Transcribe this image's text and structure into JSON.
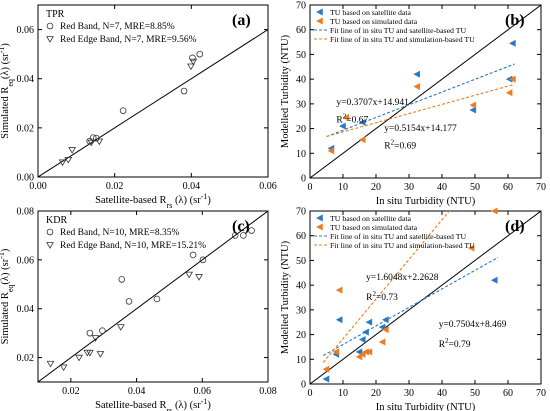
{
  "chart_data": [
    {
      "panel": "(a)",
      "type": "scatter",
      "region": "TPR",
      "xlabel": "Satellite-based R",
      "xlabel_sub": "rs",
      "xlabel_tail": "(λ)  (sr",
      "ylabel": "Simulated  R",
      "ylabel_sub": "eq",
      "ylabel_tail": "(λ) (sr",
      "unit_exp": "-1",
      "unit_close": ")",
      "xlim": [
        0,
        0.06
      ],
      "ylim": [
        0,
        0.07
      ],
      "xticks": [
        "0.00",
        "0.02",
        "0.04",
        "0.06"
      ],
      "xtick_values": [
        0,
        0.02,
        0.04,
        0.06
      ],
      "yticks": [
        "0.00",
        "0.02",
        "0.04",
        "0.06"
      ],
      "ytick_values": [
        0,
        0.02,
        0.04,
        0.06
      ],
      "one_to_one_line": true,
      "series": [
        {
          "name": "Red Band, N=7, MRE=8.85%",
          "marker": "circle",
          "x": [
            0.0135,
            0.0144,
            0.0152,
            0.0222,
            0.0381,
            0.0403,
            0.0422
          ],
          "y": [
            0.0146,
            0.016,
            0.0158,
            0.027,
            0.035,
            0.0485,
            0.05
          ]
        },
        {
          "name": "Red Edge Band, N=7, MRE=9.56%",
          "marker": "triangle",
          "x": [
            0.0064,
            0.0079,
            0.0089,
            0.0139,
            0.016,
            0.0399,
            0.0405
          ],
          "y": [
            0.006,
            0.007,
            0.011,
            0.014,
            0.0145,
            0.045,
            0.047
          ]
        }
      ]
    },
    {
      "panel": "(b)",
      "type": "scatter",
      "xlabel": "In situ Turbidity (NTU)",
      "ylabel": "Modelled Turbidity (NTU)",
      "xlim": [
        0,
        70
      ],
      "ylim": [
        0,
        70
      ],
      "xticks": [
        "0",
        "10",
        "20",
        "30",
        "40",
        "50",
        "60",
        "70"
      ],
      "xtick_values": [
        0,
        10,
        20,
        30,
        40,
        50,
        60,
        70
      ],
      "yticks": [
        "0",
        "10",
        "20",
        "30",
        "40",
        "50",
        "60",
        "70"
      ],
      "ytick_values": [
        0,
        10,
        20,
        30,
        40,
        50,
        60,
        70
      ],
      "one_to_one_line": true,
      "series": [
        {
          "name": "TU based on satellite data",
          "marker": "triangle-left",
          "color": "#2878c8",
          "x": [
            6.5,
            10.0,
            16.0,
            32.5,
            49.5,
            60.5,
            61.5
          ],
          "y": [
            12.0,
            21.0,
            22.5,
            42.0,
            27.5,
            40.0,
            54.5
          ]
        },
        {
          "name": "TU based on simulated data",
          "marker": "triangle-left",
          "color": "#f07a20",
          "x": [
            6.5,
            11.0,
            16.0,
            32.5,
            49.5,
            60.5,
            61.5
          ],
          "y": [
            11.0,
            24.5,
            15.5,
            37.0,
            29.5,
            34.5,
            40.0
          ]
        }
      ],
      "fit_lines": [
        {
          "name": "Fit line of in situ TU and satellite-based TU",
          "color": "#2878c8",
          "slope": 0.5154,
          "intercept": 14.177,
          "x_range": [
            5,
            62
          ]
        },
        {
          "name": "Fit line of in situ TU and simulation-based TU",
          "color": "#f07a20",
          "slope": 0.3707,
          "intercept": 14.941,
          "x_range": [
            5,
            62
          ]
        }
      ],
      "annotations": [
        {
          "eq": "y=0.3707x+14.941",
          "r2_pre": "R",
          "r2_exp": "2",
          "r2_post": "=0.67",
          "x": 8,
          "y_eq": 29.5,
          "y_r2": 22.5
        },
        {
          "eq": "y=0.5154x+14.177",
          "r2_pre": "R",
          "r2_exp": "2",
          "r2_post": "=0.69",
          "x": 22.5,
          "y_eq": 19,
          "y_r2": 12
        }
      ]
    },
    {
      "panel": "(c)",
      "type": "scatter",
      "region": "KDR",
      "xlabel": "Satellite-based R",
      "xlabel_sub": "rs",
      "xlabel_tail": "(λ)  (sr",
      "ylabel": "Simulated  R",
      "ylabel_sub": "eq",
      "ylabel_tail": "(λ) (sr",
      "unit_exp": "-1",
      "unit_close": ")",
      "xlim": [
        0.01,
        0.08
      ],
      "ylim": [
        0.01,
        0.08
      ],
      "xticks": [
        "0.02",
        "0.04",
        "0.06",
        "0.08"
      ],
      "xtick_values": [
        0.02,
        0.04,
        0.06,
        0.08
      ],
      "yticks": [
        "0.02",
        "0.04",
        "0.06",
        "0.08"
      ],
      "ytick_values": [
        0.02,
        0.04,
        0.06,
        0.08
      ],
      "one_to_one_line": true,
      "series": [
        {
          "name": "Red Band, N=10, MRE=8.35%",
          "marker": "circle",
          "x": [
            0.0258,
            0.0296,
            0.0355,
            0.0377,
            0.0462,
            0.0572,
            0.0602,
            0.07,
            0.0725,
            0.075
          ],
          "y": [
            0.03,
            0.031,
            0.052,
            0.043,
            0.044,
            0.062,
            0.06,
            0.07,
            0.07,
            0.072
          ]
        },
        {
          "name": "Red Edge Band, N=10, MRE=15.21%",
          "marker": "triangle",
          "x": [
            0.0138,
            0.0178,
            0.0225,
            0.025,
            0.0258,
            0.0275,
            0.029,
            0.0352,
            0.056,
            0.059
          ],
          "y": [
            0.0175,
            0.016,
            0.02,
            0.022,
            0.022,
            0.028,
            0.0215,
            0.0325,
            0.054,
            0.053
          ]
        }
      ]
    },
    {
      "panel": "(d)",
      "type": "scatter",
      "xlabel": "In situ Turbidity (NTU)",
      "ylabel": "Modelled Turbidity (NTU)",
      "xlim": [
        0,
        70
      ],
      "ylim": [
        0,
        70
      ],
      "xticks": [
        "0",
        "10",
        "20",
        "30",
        "40",
        "50",
        "60",
        "70"
      ],
      "xtick_values": [
        0,
        10,
        20,
        30,
        40,
        50,
        60,
        70
      ],
      "yticks": [
        "0",
        "10",
        "20",
        "30",
        "40",
        "50",
        "60",
        "70"
      ],
      "ytick_values": [
        0,
        10,
        20,
        30,
        40,
        50,
        60,
        70
      ],
      "one_to_one_line": true,
      "series": [
        {
          "name": "TU based on satellite data",
          "marker": "triangle-left",
          "color": "#2878c8",
          "x": [
            5,
            8,
            9,
            15,
            16,
            17,
            18,
            22,
            23,
            56
          ],
          "y": [
            2,
            12,
            26,
            13,
            18,
            21,
            25,
            23,
            26,
            42
          ]
        },
        {
          "name": "TU based on simulated data",
          "marker": "triangle-left",
          "color": "#f07a20",
          "x": [
            5,
            8,
            9,
            15,
            16,
            17,
            18,
            22,
            23,
            49,
            56
          ],
          "y": [
            6,
            13,
            38,
            11,
            12,
            13,
            13,
            17,
            22,
            55,
            70
          ]
        }
      ],
      "fit_lines": [
        {
          "name": "Fit line of in situ TU and satellite-based TU",
          "color": "#2878c8",
          "slope": 0.7504,
          "intercept": 8.469,
          "x_range": [
            4,
            57
          ]
        },
        {
          "name": "Fit line of in situ TU and simulation-based TU",
          "color": "#f07a20",
          "slope": 1.6048,
          "intercept": 2.2628,
          "x_range": [
            4,
            57
          ]
        }
      ],
      "annotations": [
        {
          "eq": "y=1.6048x+2.2628",
          "r2_pre": "R",
          "r2_exp": "2",
          "r2_post": "=0.73",
          "x": 17,
          "y_eq": 42,
          "y_r2": 34
        },
        {
          "eq": "y=0.7504x+8.469",
          "r2_pre": "R",
          "r2_exp": "2",
          "r2_post": "=0.79",
          "x": 39,
          "y_eq": 23,
          "y_r2": 15
        }
      ]
    }
  ]
}
